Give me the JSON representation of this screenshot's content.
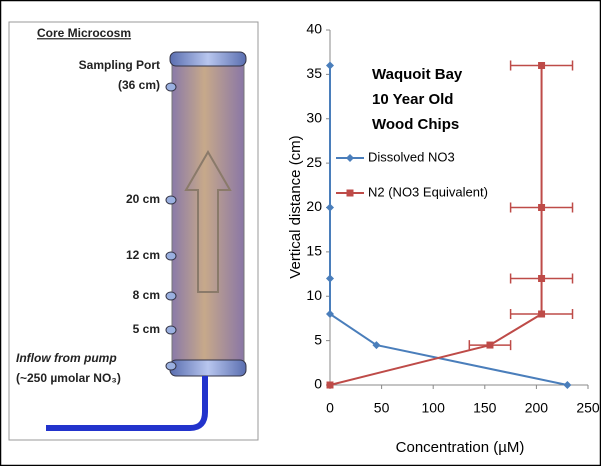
{
  "diagram": {
    "title": "Core Microcosm",
    "port_labels": [
      "Sampling Port",
      "(36 cm)",
      "20 cm",
      "12 cm",
      "8 cm",
      "5 cm"
    ],
    "inflow_label": "Inflow from pump",
    "inflow_note": "(~250 µmolar NO₃)"
  },
  "chart_data": {
    "type": "line",
    "title": [
      "Waquoit Bay",
      "10 Year Old",
      "Wood Chips"
    ],
    "x_label": "Concentration (µM)",
    "y_label": "Vertical distance (cm)",
    "xlim": [
      0,
      250
    ],
    "xticks": [
      0,
      50,
      100,
      150,
      200,
      250
    ],
    "ylim": [
      0,
      40
    ],
    "yticks": [
      0,
      5,
      10,
      15,
      20,
      25,
      30,
      35,
      40
    ],
    "series": [
      {
        "name": "Dissolved NO3",
        "color": "#4a7ebb",
        "marker": "diamond",
        "x": [
          0,
          0,
          0,
          0,
          45,
          230
        ],
        "values": [
          36,
          20,
          12,
          8,
          4.5,
          0
        ]
      },
      {
        "name": "N2 (NO3 Equivalent)",
        "color": "#be4b48",
        "marker": "square",
        "x": [
          0,
          155,
          205,
          205,
          205,
          205
        ],
        "values": [
          0,
          4.5,
          8,
          12,
          20,
          36
        ],
        "xerr": [
          null,
          20,
          30,
          30,
          30,
          30
        ]
      }
    ]
  }
}
